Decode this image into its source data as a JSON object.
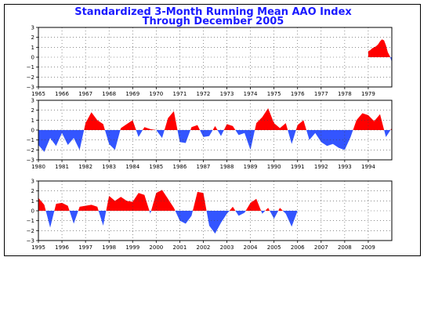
{
  "chart_data": {
    "type": "area",
    "title": "Standardized 3-Month Running Mean AAO Index",
    "subtitle": "Through December 2005",
    "positive_color": "#ff0000",
    "negative_color": "#3355ff",
    "panels": [
      {
        "x_range": [
          1965,
          1980
        ],
        "ylim": [
          -3,
          3
        ],
        "y_ticks": [
          "3",
          "2",
          "1",
          "0",
          "−1",
          "−2",
          "−3"
        ],
        "x_ticks": [
          "1965",
          "1966",
          "1967",
          "1968",
          "1969",
          "1970",
          "1971",
          "1972",
          "1973",
          "1974",
          "1975",
          "1976",
          "1977",
          "1978",
          "1979"
        ],
        "x": [
          1979.0,
          1979.08,
          1979.17,
          1979.25,
          1979.33,
          1979.42,
          1979.5,
          1979.58,
          1979.67,
          1979.75,
          1979.83,
          1979.92,
          1980.0
        ],
        "values": [
          0.6,
          0.7,
          0.9,
          1.0,
          1.1,
          1.3,
          1.6,
          1.8,
          1.7,
          1.2,
          0.5,
          0.1,
          -0.5
        ]
      },
      {
        "x_range": [
          1980,
          1995
        ],
        "ylim": [
          -3,
          3
        ],
        "y_ticks": [
          "3",
          "2",
          "1",
          "0",
          "−1",
          "−2",
          "−3"
        ],
        "x_ticks": [
          "1980",
          "1981",
          "1982",
          "1983",
          "1984",
          "1985",
          "1986",
          "1987",
          "1988",
          "1989",
          "1990",
          "1991",
          "1992",
          "1993",
          "1994"
        ],
        "x": [
          1980.0,
          1980.25,
          1980.5,
          1980.75,
          1981.0,
          1981.25,
          1981.5,
          1981.75,
          1982.0,
          1982.25,
          1982.5,
          1982.75,
          1983.0,
          1983.25,
          1983.5,
          1983.75,
          1984.0,
          1984.25,
          1984.5,
          1984.75,
          1985.0,
          1985.25,
          1985.5,
          1985.75,
          1986.0,
          1986.25,
          1986.5,
          1986.75,
          1987.0,
          1987.25,
          1987.5,
          1987.75,
          1988.0,
          1988.25,
          1988.5,
          1988.75,
          1989.0,
          1989.25,
          1989.5,
          1989.75,
          1990.0,
          1990.25,
          1990.5,
          1990.75,
          1991.0,
          1991.25,
          1991.5,
          1991.75,
          1992.0,
          1992.25,
          1992.5,
          1992.75,
          1993.0,
          1993.25,
          1993.5,
          1993.75,
          1994.0,
          1994.25,
          1994.5,
          1994.75,
          1995.0
        ],
        "values": [
          -1.5,
          -2.2,
          -0.8,
          -1.6,
          -0.3,
          -1.5,
          -0.8,
          -2.0,
          0.7,
          1.8,
          1.0,
          0.6,
          -1.4,
          -2.0,
          0.2,
          0.6,
          1.0,
          -0.7,
          0.3,
          0.1,
          0.0,
          -0.8,
          1.2,
          1.9,
          -1.2,
          -1.3,
          0.3,
          0.5,
          -0.7,
          -0.6,
          0.4,
          -0.6,
          0.6,
          0.4,
          -0.5,
          -0.3,
          -2.0,
          0.7,
          1.3,
          2.2,
          0.7,
          0.2,
          0.7,
          -1.4,
          0.5,
          1.0,
          -1.0,
          -0.3,
          -1.2,
          -1.6,
          -1.4,
          -1.8,
          -2.0,
          -0.7,
          1.0,
          1.7,
          1.5,
          0.9,
          1.6,
          -0.7,
          0.2
        ]
      },
      {
        "x_range": [
          1995,
          2010
        ],
        "ylim": [
          -3,
          3
        ],
        "y_ticks": [
          "3",
          "2",
          "1",
          "0",
          "−1",
          "−2",
          "−3"
        ],
        "x_ticks": [
          "1995",
          "1996",
          "1997",
          "1998",
          "1999",
          "2000",
          "2001",
          "2002",
          "2003",
          "2004",
          "2005",
          "2006",
          "2007",
          "2008",
          "2009"
        ],
        "x": [
          1995.0,
          1995.25,
          1995.5,
          1995.75,
          1996.0,
          1996.25,
          1996.5,
          1996.75,
          1997.0,
          1997.25,
          1997.5,
          1997.75,
          1998.0,
          1998.25,
          1998.5,
          1998.75,
          1999.0,
          1999.25,
          1999.5,
          1999.75,
          2000.0,
          2000.25,
          2000.5,
          2000.75,
          2001.0,
          2001.25,
          2001.5,
          2001.75,
          2002.0,
          2002.25,
          2002.5,
          2002.75,
          2003.0,
          2003.25,
          2003.5,
          2003.75,
          2004.0,
          2004.25,
          2004.5,
          2004.75,
          2005.0,
          2005.25,
          2005.5,
          2005.75,
          2006.0
        ],
        "values": [
          1.3,
          0.6,
          -1.7,
          0.7,
          0.8,
          0.5,
          -1.3,
          0.4,
          0.5,
          0.6,
          0.4,
          -1.5,
          1.5,
          1.0,
          1.4,
          1.0,
          0.9,
          1.8,
          1.6,
          -0.3,
          1.8,
          2.1,
          1.2,
          0.3,
          -1.0,
          -1.3,
          -0.5,
          1.9,
          1.8,
          -1.5,
          -2.3,
          -1.2,
          -0.3,
          0.4,
          -0.5,
          -0.2,
          0.8,
          1.2,
          -0.3,
          0.3,
          -0.8,
          0.3,
          -0.3,
          -1.6,
          0.0
        ]
      }
    ]
  }
}
